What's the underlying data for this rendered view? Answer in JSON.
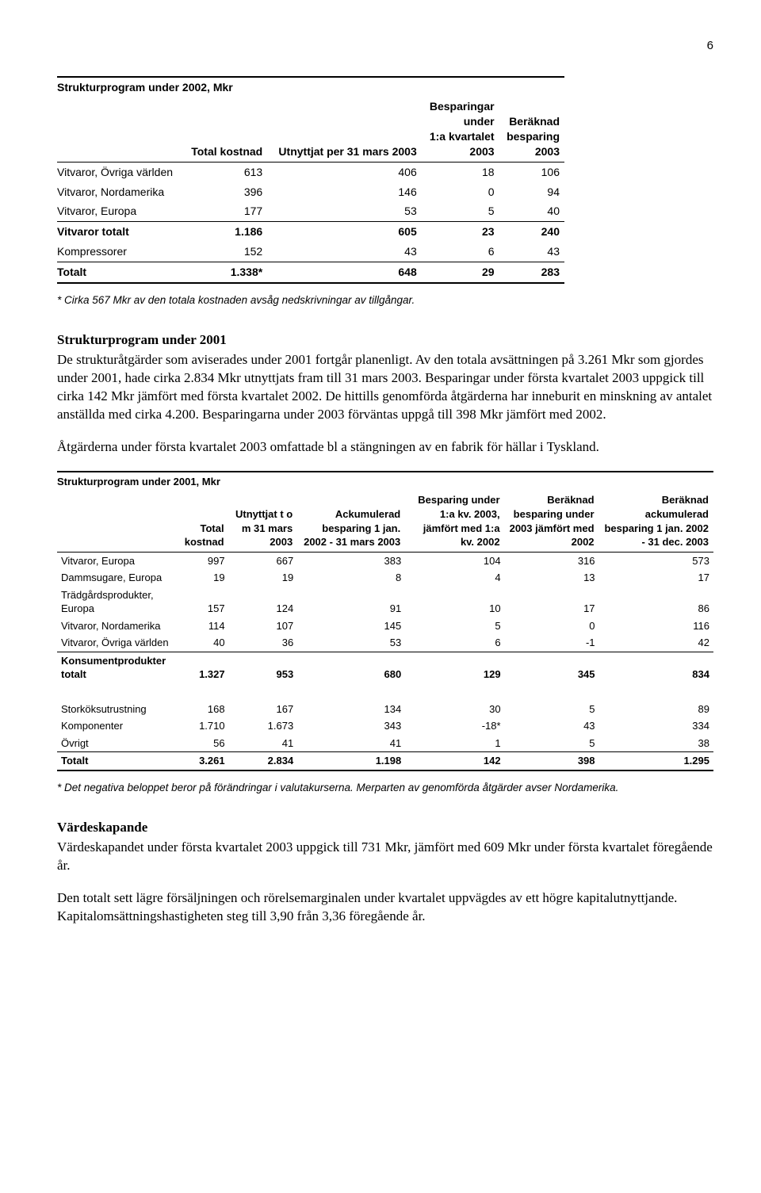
{
  "page_number": "6",
  "table1": {
    "title": "Strukturprogram under 2002, Mkr",
    "headers": {
      "c1": "Total kostnad",
      "c2": "Utnyttjat per 31 mars 2003",
      "c3a": "Besparingar",
      "c3b": "under",
      "c3c": "1:a kvartalet",
      "c3d": "2003",
      "c4a": "Beräknad",
      "c4b": "besparing",
      "c4c": "2003"
    },
    "rows": [
      {
        "label": "Vitvaror, Övriga världen",
        "v": [
          "613",
          "406",
          "18",
          "106"
        ]
      },
      {
        "label": "Vitvaror, Nordamerika",
        "v": [
          "396",
          "146",
          "0",
          "94"
        ]
      },
      {
        "label": "Vitvaror, Europa",
        "v": [
          "177",
          "53",
          "5",
          "40"
        ]
      },
      {
        "label": "Vitvaror totalt",
        "v": [
          "1.186",
          "605",
          "23",
          "240"
        ],
        "bold": true,
        "rule_top": true
      },
      {
        "label": "Kompressorer",
        "v": [
          "152",
          "43",
          "6",
          "43"
        ],
        "rule_bot": true
      },
      {
        "label": "Totalt",
        "v": [
          "1.338*",
          "648",
          "29",
          "283"
        ],
        "bold": true,
        "rule_bot2": true
      }
    ],
    "footnote": "* Cirka 567 Mkr av den totala kostnaden avsåg nedskrivningar av tillgångar."
  },
  "section1": {
    "heading": "Strukturprogram under 2001",
    "para1": "De strukturåtgärder som aviserades under 2001 fortgår planenligt. Av den totala avsättningen på 3.261 Mkr som gjordes under 2001, hade cirka 2.834 Mkr utnyttjats fram till 31 mars 2003. Besparingar under första kvartalet 2003 uppgick till cirka 142 Mkr jämfört med första kvartalet 2002. De hittills genomförda åtgärderna har inneburit en minskning av antalet anställda med cirka 4.200. Besparingarna under 2003 förväntas uppgå till 398 Mkr jämfört med 2002.",
    "para2": "Åtgärderna under första kvartalet 2003 omfattade bl a stängningen av en fabrik för hällar i Tyskland."
  },
  "table2": {
    "title": "Strukturprogram under 2001, Mkr",
    "headers": {
      "c1": "Total kostnad",
      "c2": "Utnyttjat t o m 31 mars 2003",
      "c3": "Ackumulerad besparing 1 jan. 2002 - 31 mars 2003",
      "c4": "Besparing under 1:a kv. 2003, jämfört med 1:a kv. 2002",
      "c5": "Beräknad besparing under 2003 jämfört med 2002",
      "c6": "Beräknad ackumulerad besparing 1 jan. 2002 - 31 dec. 2003"
    },
    "rows": [
      {
        "label": "Vitvaror, Europa",
        "v": [
          "997",
          "667",
          "383",
          "104",
          "316",
          "573"
        ]
      },
      {
        "label": "Dammsugare, Europa",
        "v": [
          "19",
          "19",
          "8",
          "4",
          "13",
          "17"
        ]
      },
      {
        "label": "Trädgårdsprodukter, Europa",
        "v": [
          "157",
          "124",
          "91",
          "10",
          "17",
          "86"
        ]
      },
      {
        "label": "Vitvaror, Nordamerika",
        "v": [
          "114",
          "107",
          "145",
          "5",
          "0",
          "116"
        ]
      },
      {
        "label": "Vitvaror, Övriga världen",
        "v": [
          "40",
          "36",
          "53",
          "6",
          "-1",
          "42"
        ],
        "rule_bot": true
      },
      {
        "label": "Konsumentprodukter totalt",
        "v": [
          "1.327",
          "953",
          "680",
          "129",
          "345",
          "834"
        ],
        "bold": true
      },
      {
        "spacer": true
      },
      {
        "label": "Storköksutrustning",
        "v": [
          "168",
          "167",
          "134",
          "30",
          "5",
          "89"
        ]
      },
      {
        "label": "Komponenter",
        "v": [
          "1.710",
          "1.673",
          "343",
          "-18*",
          "43",
          "334"
        ]
      },
      {
        "label": "Övrigt",
        "v": [
          "56",
          "41",
          "41",
          "1",
          "5",
          "38"
        ],
        "rule_bot": true
      },
      {
        "label": "Totalt",
        "v": [
          "3.261",
          "2.834",
          "1.198",
          "142",
          "398",
          "1.295"
        ],
        "bold": true,
        "rule_bot2": true
      }
    ],
    "footnote": "* Det negativa beloppet beror på förändringar i valutakurserna. Merparten av genomförda åtgärder avser Nordamerika."
  },
  "section2": {
    "heading": "Värdeskapande",
    "para1": "Värdeskapandet under första kvartalet 2003 uppgick till 731 Mkr, jämfört med 609 Mkr under första kvartalet föregående år.",
    "para2": "Den totalt sett lägre försäljningen och rörelsemarginalen under kvartalet uppvägdes av ett högre kapitalutnyttjande. Kapitalomsättningshastigheten steg till 3,90 från 3,36 föregående år."
  }
}
